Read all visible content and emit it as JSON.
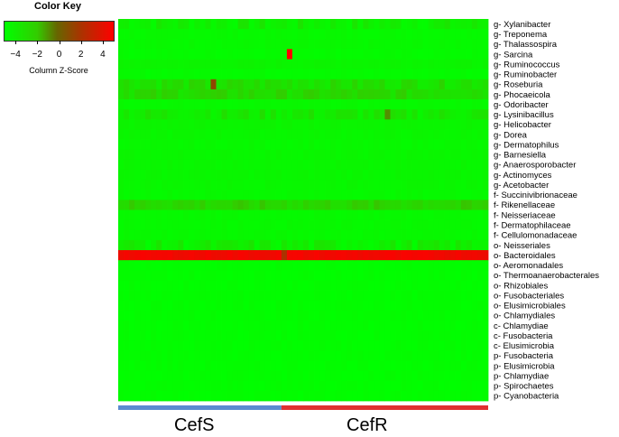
{
  "chart_data": {
    "type": "heatmap",
    "color_key": {
      "title": "Color Key",
      "xlabel": "Column Z-Score",
      "ticks": [
        -4,
        -2,
        0,
        2,
        4
      ],
      "range": [
        -5,
        5
      ],
      "colors": [
        "#00ff00",
        "#33cc00",
        "#666600",
        "#aa3300",
        "#ff0000"
      ]
    },
    "rows": [
      "g- Xylanibacter",
      "g- Treponema",
      "g- Thalassospira",
      "g- Sarcina",
      "g- Ruminococcus",
      "g- Ruminobacter",
      "g- Roseburia",
      "g- Phocaeicola",
      "g- Odoribacter",
      "g- Lysinibacillus",
      "g- Helicobacter",
      "g- Dorea",
      "g- Dermatophilus",
      "g- Barnesiella",
      "g- Anaerosporobacter",
      "g- Actinomyces",
      "g- Acetobacter",
      "f- Succinivibrionaceae",
      "f- Rikenellaceae",
      "f- Neisseriaceae",
      "f- Dermatophilaceae",
      "f- Cellulomonadaceae",
      "o- Neisseriales",
      "o- Bacteroidales",
      "o- Aeromonadales",
      "o- Thermoanaerobacterales",
      "o- Rhizobiales",
      "o- Fusobacteriales",
      "o- Elusimicrobiales",
      "o- Chlamydiales",
      "c- Chlamydiae",
      "c- Fusobacteria",
      "c- Elusimicrobia",
      "p- Fusobacteria",
      "p- Elusimicrobia",
      "p- Chlamydiae",
      "p- Spirochaetes",
      "p- Cyanobacteria"
    ],
    "groups": [
      {
        "name": "CefS",
        "columns": 30,
        "color": "#5b8bd0"
      },
      {
        "name": "CefR",
        "columns": 38,
        "color": "#e03030"
      }
    ],
    "row_mean_zscores": [
      -4.4,
      -4.7,
      -4.7,
      -4.8,
      -4.5,
      -4.8,
      -3.6,
      -3.3,
      -4.7,
      -4.1,
      -4.5,
      -4.6,
      -4.7,
      -4.6,
      -4.6,
      -4.6,
      -4.6,
      -4.7,
      -3.1,
      -4.7,
      -4.7,
      -4.7,
      -4.4,
      4.6,
      -4.9,
      -4.9,
      -4.9,
      -4.9,
      -4.9,
      -4.9,
      -4.9,
      -4.9,
      -4.9,
      -4.9,
      -4.9,
      -4.9,
      -4.9,
      -4.9
    ],
    "highlighted_cells": [
      {
        "row": "g- Sarcina",
        "column": 31,
        "zscore": 5.0
      },
      {
        "row": "g- Roseburia",
        "column": 17,
        "zscore": 1.5
      },
      {
        "row": "g- Lysinibacillus",
        "column": 49,
        "zscore": -1.0
      },
      {
        "row": "o- Bacteroidales",
        "column": 30,
        "zscore": 2.5
      }
    ]
  }
}
